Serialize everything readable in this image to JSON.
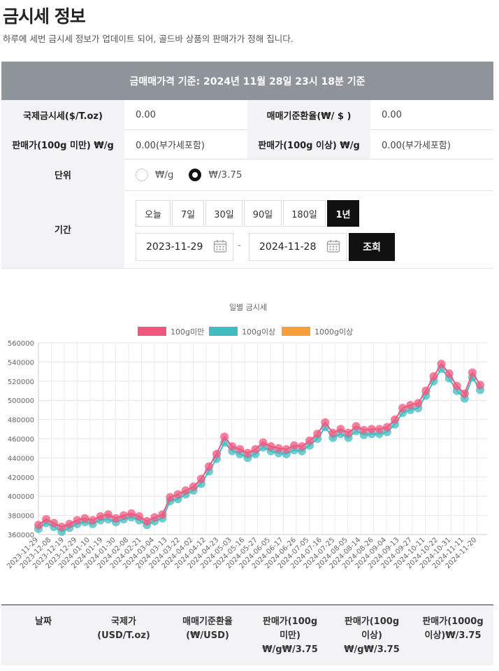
{
  "page": {
    "title": "금시세 정보",
    "subtitle": "하루에 세번 금시세 정보가 업데이트 되어, 골드바 상품의 판매가가 정해 집니다.",
    "banner": "금매매가격 기준: 2024년 11월 28일 23시 18분 기준"
  },
  "info": {
    "intl_label": "국제금시세($/T.oz)",
    "intl_value": "0.00",
    "fx_label": "매매기준환율(₩/ $ )",
    "fx_value": "0.00",
    "sale_under_label": "판매가(100g 미만) ₩/g",
    "sale_under_value": "0.00(부가세포함)",
    "sale_over_label": "판매가(100g 이상) ₩/g",
    "sale_over_value": "0.00(부가세포함)"
  },
  "unit": {
    "label": "단위",
    "options": [
      "₩/g",
      "₩/3.75"
    ],
    "selected": "₩/3.75"
  },
  "period": {
    "label": "기간",
    "buttons": [
      "오늘",
      "7일",
      "30일",
      "90일",
      "180일",
      "1년"
    ],
    "active": "1년",
    "start_date": "2023-11-29",
    "end_date": "2024-11-28",
    "separator": "-",
    "search_label": "조회"
  },
  "colors": {
    "series_under": "#f0577f",
    "series_over": "#41bcc0",
    "series_1000": "#f89e3b",
    "active_button": "#111111",
    "banner_bg": "#8f949b"
  },
  "chart_data": {
    "type": "line",
    "title": "일별 금시세",
    "legend_position": "top",
    "grid": true,
    "ylim": [
      360000,
      560000
    ],
    "yticks": [
      360000,
      380000,
      400000,
      420000,
      440000,
      460000,
      480000,
      500000,
      520000,
      540000,
      560000
    ],
    "ytick_labels": [
      "360000",
      "380000",
      "400000",
      "420000",
      "440000",
      "460000",
      "480000",
      "500000",
      "520000",
      "540000",
      "560000"
    ],
    "xtick_labels": [
      "2023-11-29",
      "2023-12-08",
      "2023-12-19",
      "2023-12-29",
      "2024-01-10",
      "2024-01-19",
      "2024-01-30",
      "2024-02-08",
      "2024-02-21",
      "2024-03-04",
      "2024-03-13",
      "2024-03-22",
      "2024-04-02",
      "2024-04-12",
      "2024-04-23",
      "2024-05-03",
      "2024-05-16",
      "2024-05-27",
      "2024-06-05",
      "2024-06-17",
      "2024-06-26",
      "2024-07-05",
      "2024-07-16",
      "2024-07-25",
      "2024-08-05",
      "2024-08-14",
      "2024-08-26",
      "2024-09-04",
      "2024-09-13",
      "2024-09-27",
      "2024-10-11",
      "2024-10-22",
      "2024-10-31",
      "2024-11-11",
      "2024-11-20"
    ],
    "series": [
      {
        "name": "100g미만",
        "values": [
          370000,
          376000,
          372000,
          368000,
          371000,
          375000,
          377000,
          375000,
          379000,
          381000,
          377000,
          380000,
          382000,
          379000,
          374000,
          378000,
          381000,
          399000,
          402000,
          406000,
          410000,
          418000,
          431000,
          444000,
          462000,
          452000,
          449000,
          445000,
          449000,
          456000,
          452000,
          450000,
          449000,
          453000,
          452000,
          458000,
          465000,
          477000,
          466000,
          470000,
          466000,
          473000,
          469000,
          470000,
          470000,
          472000,
          480000,
          492000,
          495000,
          497000,
          510000,
          525000,
          538000,
          528000,
          515000,
          507000,
          529000,
          516000
        ]
      },
      {
        "name": "100g이상",
        "values": [
          366000,
          372000,
          368000,
          363000,
          367000,
          371000,
          373000,
          371000,
          375000,
          376000,
          373000,
          376000,
          378000,
          375000,
          370000,
          374000,
          377000,
          395000,
          397000,
          402000,
          406000,
          413000,
          426000,
          439000,
          456000,
          447000,
          444000,
          440000,
          444000,
          451000,
          447000,
          445000,
          444000,
          448000,
          447000,
          453000,
          460000,
          472000,
          461000,
          465000,
          461000,
          468000,
          464000,
          465000,
          465000,
          467000,
          475000,
          487000,
          490000,
          492000,
          505000,
          520000,
          533000,
          523000,
          510000,
          502000,
          524000,
          511000
        ]
      },
      {
        "name": "1000g이상",
        "values": []
      }
    ]
  },
  "table": {
    "headers": [
      "날짜",
      "국제가\n(USD/T.oz)",
      "매매기준환율\n(₩/USD)",
      "판매가(100g\n미만)\n₩/g₩/3.75",
      "판매가(100g\n이상)\n₩/g₩/3.75",
      "판매가(1000g\n이상)₩/3.75"
    ]
  }
}
